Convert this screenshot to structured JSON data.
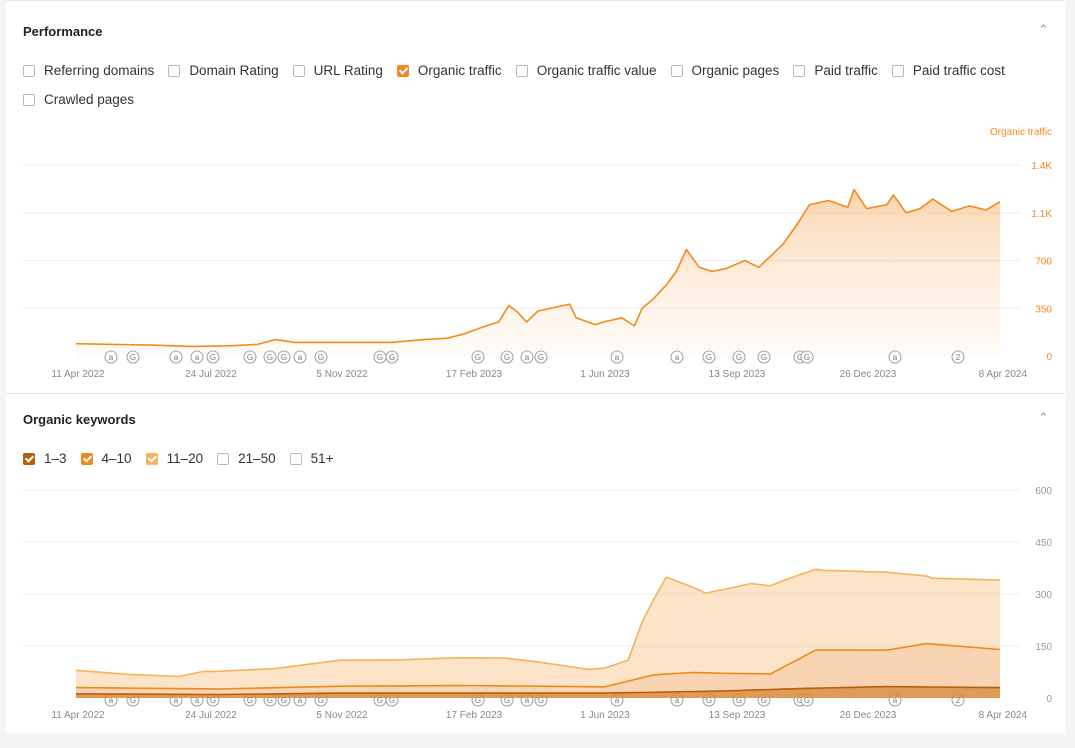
{
  "performance": {
    "title": "Performance",
    "options": [
      {
        "label": "Referring domains",
        "checked": false
      },
      {
        "label": "Domain Rating",
        "checked": false
      },
      {
        "label": "URL Rating",
        "checked": false
      },
      {
        "label": "Organic traffic",
        "checked": true
      },
      {
        "label": "Organic traffic value",
        "checked": false
      },
      {
        "label": "Organic pages",
        "checked": false
      },
      {
        "label": "Paid traffic",
        "checked": false
      },
      {
        "label": "Paid traffic cost",
        "checked": false
      },
      {
        "label": "Crawled pages",
        "checked": false
      }
    ]
  },
  "keywords": {
    "title": "Organic keywords",
    "options": [
      {
        "label": "1–3",
        "checked": true,
        "color": "#b85f10"
      },
      {
        "label": "4–10",
        "checked": true,
        "color": "#ec8a1d"
      },
      {
        "label": "11–20",
        "checked": true,
        "color": "#f6b25e"
      },
      {
        "label": "21–50",
        "checked": false
      },
      {
        "label": "51+",
        "checked": false
      }
    ]
  },
  "colors": {
    "accent": "#f08a24",
    "traffic_line": "#f28b1e"
  },
  "x_tick_labels": [
    "11 Apr 2022",
    "24 Jul 2022",
    "5 Nov 2022",
    "17 Feb 2023",
    "1 Jun 2023",
    "13 Sep 2023",
    "26 Dec 2023",
    "8 Apr 2024"
  ],
  "annotation_markers": [
    "a",
    "G",
    "a",
    "a",
    "G",
    "G",
    "G",
    "G",
    "a",
    "G",
    "G",
    "G",
    "G",
    "G",
    "a",
    "G",
    "a",
    "a",
    "G",
    "G",
    "G",
    "G",
    "G",
    "a",
    "2"
  ],
  "chart_data": [
    {
      "type": "area",
      "title": "Performance",
      "y_axis_label": "Organic traffic",
      "y_tick_labels": [
        "0",
        "350",
        "700",
        "1.1K",
        "1.4K"
      ],
      "ylim": [
        0,
        1400
      ],
      "x_range": [
        "2022-04-11",
        "2024-04-08"
      ],
      "grid": true,
      "series": [
        {
          "name": "Organic traffic",
          "color": "#f28b1e",
          "points": [
            [
              "2022-04-11",
              90
            ],
            [
              "2022-05-10",
              85
            ],
            [
              "2022-06-10",
              80
            ],
            [
              "2022-07-10",
              70
            ],
            [
              "2022-08-10",
              75
            ],
            [
              "2022-09-01",
              85
            ],
            [
              "2022-09-15",
              120
            ],
            [
              "2022-10-01",
              100
            ],
            [
              "2022-11-05",
              100
            ],
            [
              "2022-12-15",
              100
            ],
            [
              "2023-01-10",
              120
            ],
            [
              "2023-01-28",
              130
            ],
            [
              "2023-02-10",
              160
            ],
            [
              "2023-02-25",
              210
            ],
            [
              "2023-03-10",
              250
            ],
            [
              "2023-03-18",
              370
            ],
            [
              "2023-03-25",
              320
            ],
            [
              "2023-04-01",
              250
            ],
            [
              "2023-04-10",
              330
            ],
            [
              "2023-04-25",
              360
            ],
            [
              "2023-05-05",
              380
            ],
            [
              "2023-05-10",
              280
            ],
            [
              "2023-05-25",
              230
            ],
            [
              "2023-06-01",
              250
            ],
            [
              "2023-06-15",
              280
            ],
            [
              "2023-06-25",
              220
            ],
            [
              "2023-07-01",
              350
            ],
            [
              "2023-07-10",
              420
            ],
            [
              "2023-07-20",
              520
            ],
            [
              "2023-07-28",
              620
            ],
            [
              "2023-08-05",
              780
            ],
            [
              "2023-08-15",
              650
            ],
            [
              "2023-08-25",
              620
            ],
            [
              "2023-09-05",
              640
            ],
            [
              "2023-09-20",
              700
            ],
            [
              "2023-10-01",
              650
            ],
            [
              "2023-10-10",
              730
            ],
            [
              "2023-10-20",
              820
            ],
            [
              "2023-10-30",
              950
            ],
            [
              "2023-11-10",
              1110
            ],
            [
              "2023-11-25",
              1140
            ],
            [
              "2023-12-10",
              1090
            ],
            [
              "2023-12-15",
              1220
            ],
            [
              "2023-12-25",
              1080
            ],
            [
              "2024-01-10",
              1110
            ],
            [
              "2024-01-15",
              1180
            ],
            [
              "2024-01-25",
              1050
            ],
            [
              "2024-02-05",
              1080
            ],
            [
              "2024-02-15",
              1150
            ],
            [
              "2024-03-01",
              1060
            ],
            [
              "2024-03-15",
              1100
            ],
            [
              "2024-03-28",
              1070
            ],
            [
              "2024-04-08",
              1130
            ]
          ]
        }
      ]
    },
    {
      "type": "area",
      "title": "Organic keywords",
      "y_tick_labels": [
        "0",
        "150",
        "300",
        "450",
        "600"
      ],
      "ylim": [
        0,
        600
      ],
      "x_range": [
        "2022-04-11",
        "2024-04-08"
      ],
      "grid": true,
      "stacked": true,
      "series": [
        {
          "name": "1–3",
          "color": "#b85f10",
          "points": [
            [
              "2022-04-11",
              12
            ],
            [
              "2022-08-01",
              10
            ],
            [
              "2022-11-05",
              14
            ],
            [
              "2023-02-17",
              14
            ],
            [
              "2023-06-01",
              14
            ],
            [
              "2023-09-01",
              20
            ],
            [
              "2023-11-10",
              28
            ],
            [
              "2024-01-10",
              33
            ],
            [
              "2024-04-08",
              30
            ]
          ]
        },
        {
          "name": "4–10",
          "color": "#ec8a1d",
          "points": [
            [
              "2022-04-11",
              18
            ],
            [
              "2022-08-01",
              16
            ],
            [
              "2022-11-05",
              20
            ],
            [
              "2023-02-17",
              22
            ],
            [
              "2023-06-01",
              18
            ],
            [
              "2023-07-10",
              50
            ],
            [
              "2023-08-10",
              55
            ],
            [
              "2023-10-10",
              45
            ],
            [
              "2023-11-15",
              110
            ],
            [
              "2024-01-10",
              105
            ],
            [
              "2024-02-10",
              125
            ],
            [
              "2024-04-08",
              110
            ]
          ]
        },
        {
          "name": "11–20",
          "color": "#f6b25e",
          "points": [
            [
              "2022-04-11",
              50
            ],
            [
              "2022-05-20",
              40
            ],
            [
              "2022-07-01",
              35
            ],
            [
              "2022-07-20",
              50
            ],
            [
              "2022-09-15",
              55
            ],
            [
              "2022-11-05",
              75
            ],
            [
              "2022-12-20",
              75
            ],
            [
              "2023-02-01",
              80
            ],
            [
              "2023-03-15",
              80
            ],
            [
              "2023-04-10",
              70
            ],
            [
              "2023-05-20",
              50
            ],
            [
              "2023-06-20",
              60
            ],
            [
              "2023-07-01",
              160
            ],
            [
              "2023-07-20",
              280
            ],
            [
              "2023-08-20",
              230
            ],
            [
              "2023-09-25",
              260
            ],
            [
              "2023-10-20",
              250
            ],
            [
              "2023-11-20",
              230
            ],
            [
              "2024-01-10",
              225
            ],
            [
              "2024-02-15",
              190
            ],
            [
              "2024-04-08",
              200
            ]
          ]
        }
      ]
    }
  ]
}
